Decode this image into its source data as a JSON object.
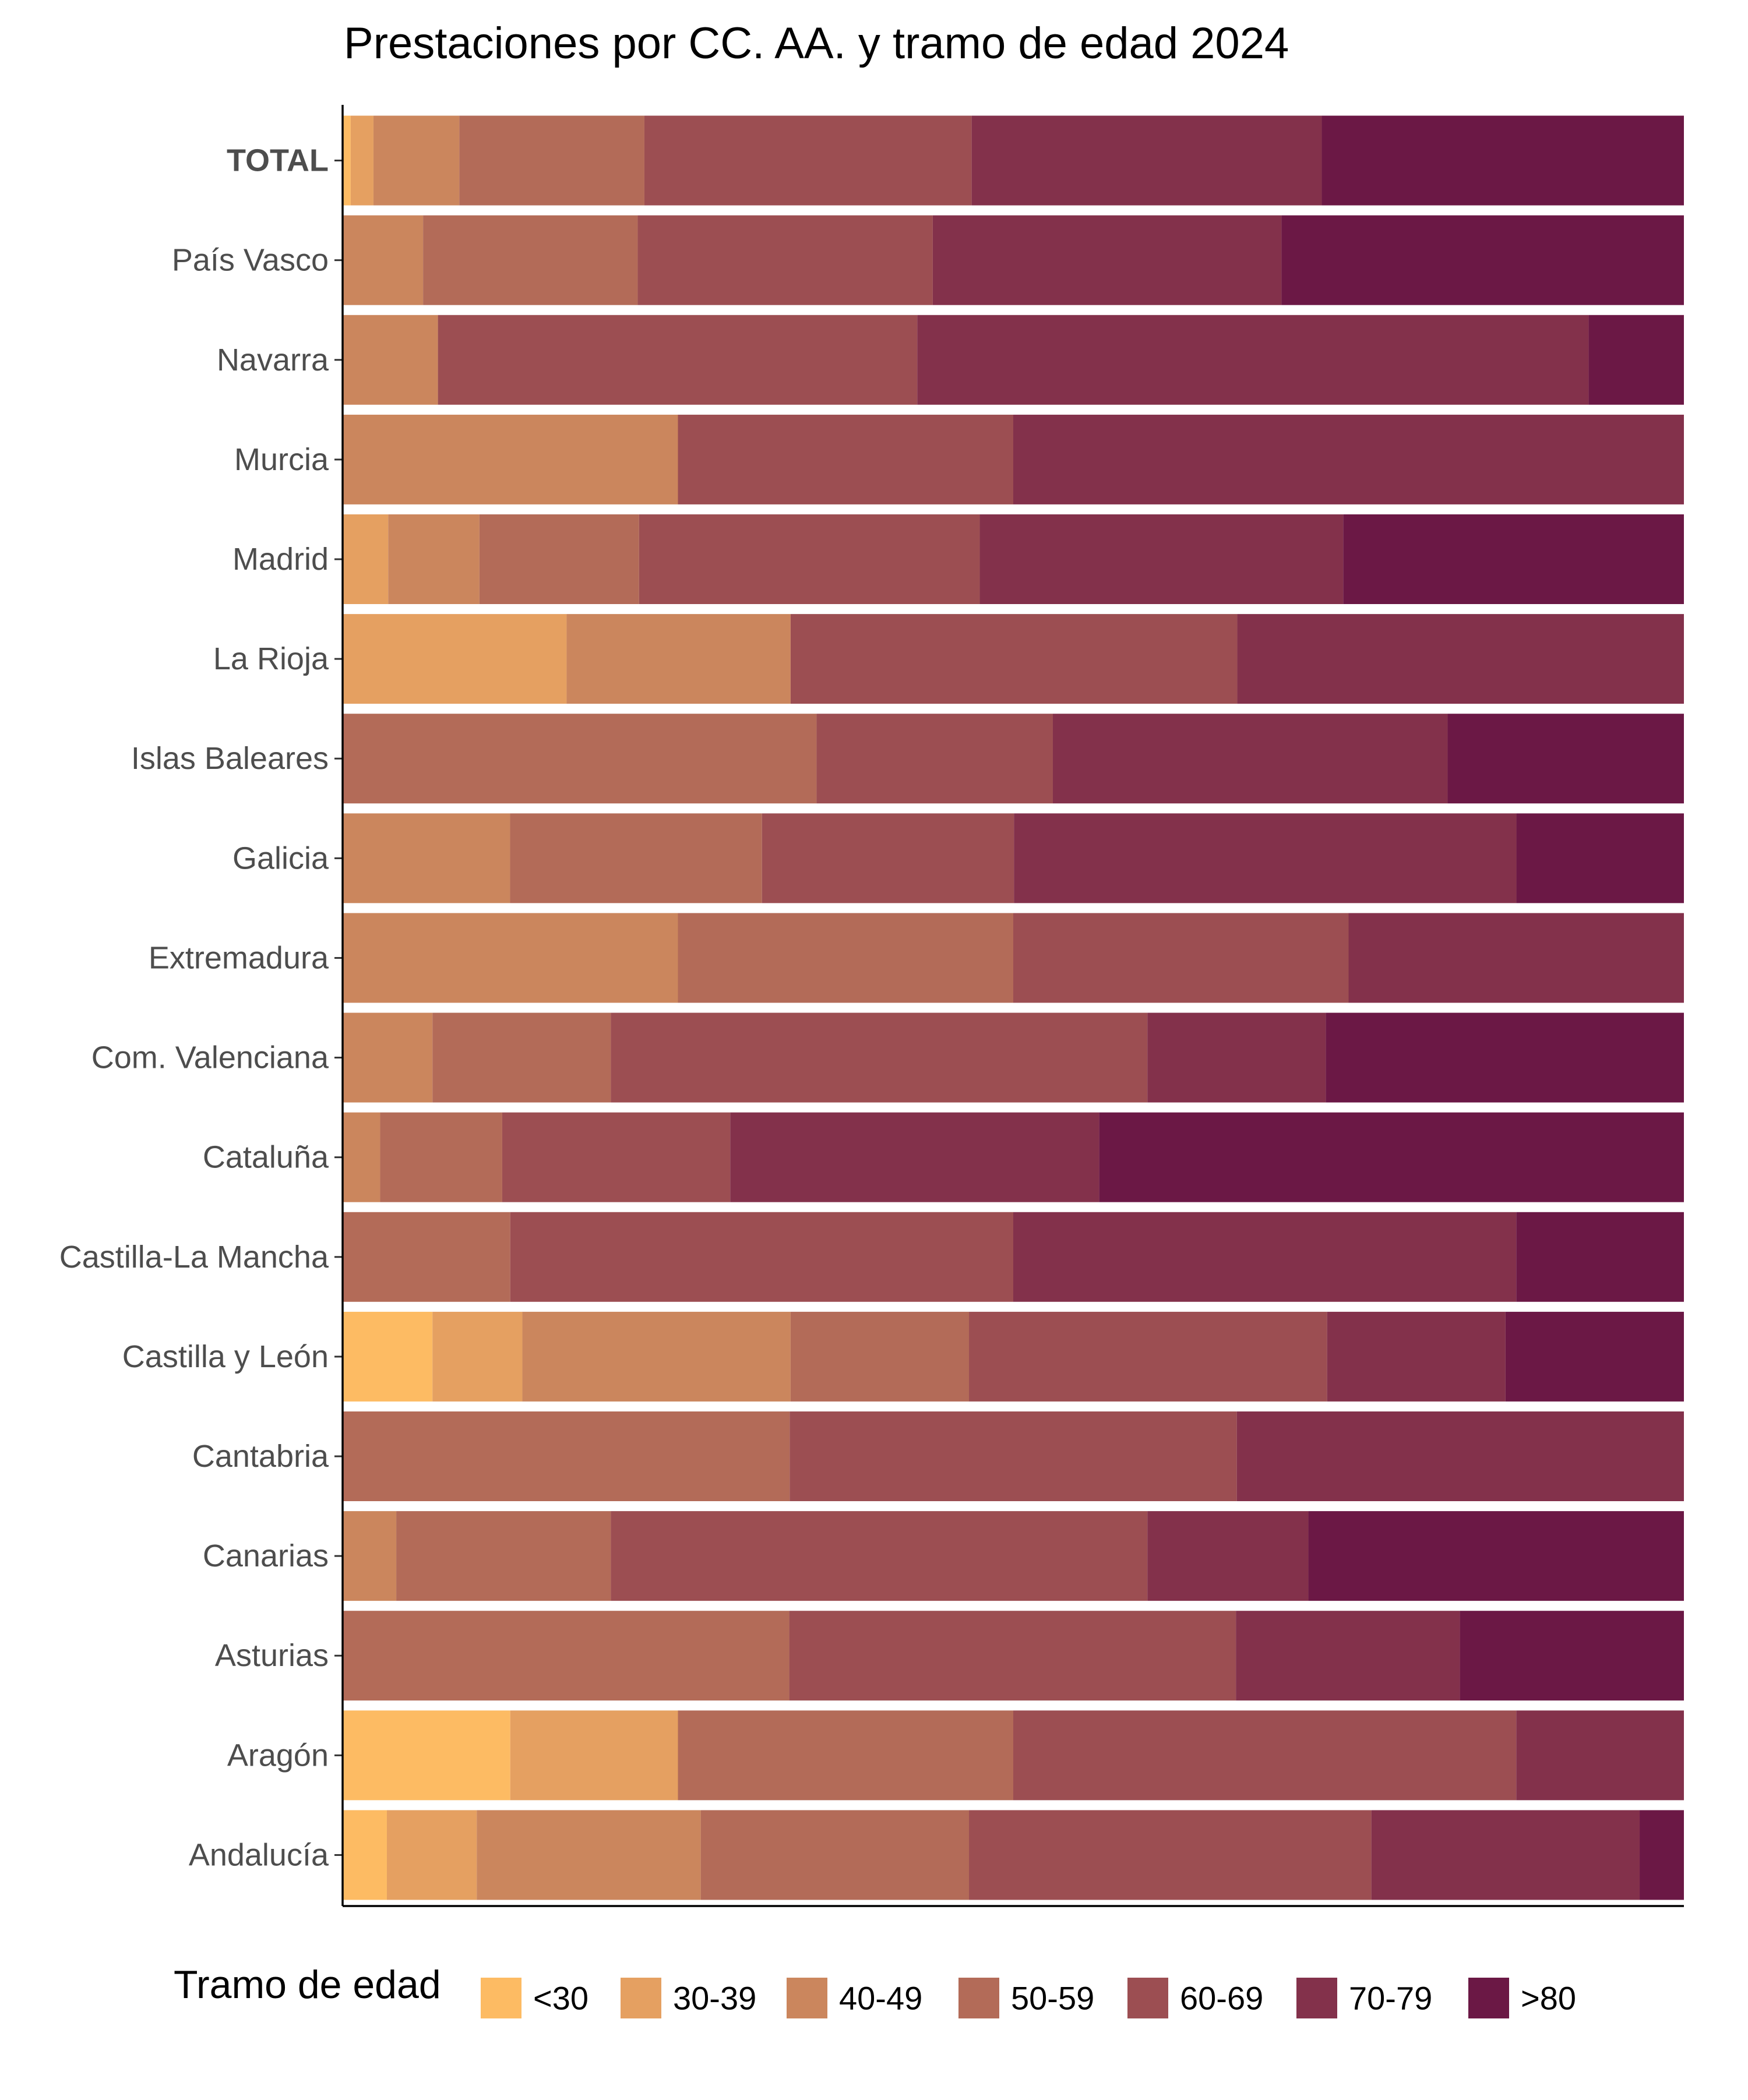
{
  "chart_data": {
    "type": "bar",
    "orientation": "horizontal",
    "stacked": "percent",
    "title": "Prestaciones por CC. AA. y tramo de edad 2024",
    "xlabel": "",
    "ylabel": "",
    "xlim": [
      0,
      100
    ],
    "grid": false,
    "legend_title": "Tramo de edad",
    "legend_position": "bottom",
    "bold_categories": [
      "TOTAL"
    ],
    "categories": [
      "TOTAL",
      "País Vasco",
      "Navarra",
      "Murcia",
      "Madrid",
      "La Rioja",
      "Islas Baleares",
      "Galicia",
      "Extremadura",
      "Com. Valenciana",
      "Cataluña",
      "Castilla-La Mancha",
      "Castilla y León",
      "Cantabria",
      "Canarias",
      "Asturias",
      "Aragón",
      "Andalucía"
    ],
    "series": [
      {
        "name": "<30",
        "color": "#fdbb63",
        "values": [
          0.6,
          0,
          0,
          0,
          0,
          0,
          0,
          0,
          0,
          0,
          0,
          0,
          6.7,
          0,
          0,
          0,
          12.5,
          3.3
        ]
      },
      {
        "name": "30-39",
        "color": "#e5a061",
        "values": [
          1.7,
          0,
          0,
          0,
          3.4,
          16.7,
          0,
          0,
          0,
          0,
          0,
          0,
          6.7,
          0,
          0,
          0,
          12.5,
          6.7
        ]
      },
      {
        "name": "40-49",
        "color": "#cb865d",
        "values": [
          6.4,
          6.0,
          7.1,
          25.0,
          6.8,
          16.7,
          0,
          12.5,
          25.0,
          6.7,
          2.8,
          0,
          20.0,
          0,
          4.0,
          0,
          0,
          16.7
        ]
      },
      {
        "name": "50-59",
        "color": "#b36b58",
        "values": [
          13.8,
          16.0,
          0,
          0,
          11.9,
          0,
          35.3,
          18.8,
          25.0,
          13.3,
          9.1,
          12.5,
          13.3,
          33.3,
          16.0,
          33.3,
          25.0,
          20.0
        ]
      },
      {
        "name": "60-69",
        "color": "#9c4e52",
        "values": [
          24.4,
          22.0,
          35.7,
          25.0,
          25.4,
          33.3,
          17.6,
          18.8,
          25.0,
          40.0,
          17.0,
          37.5,
          26.7,
          33.3,
          40.0,
          33.3,
          37.5,
          30.0
        ]
      },
      {
        "name": "70-79",
        "color": "#83314b",
        "values": [
          26.1,
          26.0,
          50.0,
          50.0,
          27.1,
          33.3,
          29.4,
          37.5,
          25.0,
          13.3,
          27.5,
          37.5,
          13.3,
          33.3,
          12.0,
          16.7,
          12.5,
          20.0
        ]
      },
      {
        "name": ">80",
        "color": "#6b1845",
        "values": [
          27.0,
          30.0,
          7.1,
          0,
          25.4,
          0,
          17.6,
          12.5,
          0,
          26.7,
          43.6,
          12.5,
          13.3,
          0,
          28.0,
          16.7,
          0,
          3.3
        ]
      }
    ]
  }
}
